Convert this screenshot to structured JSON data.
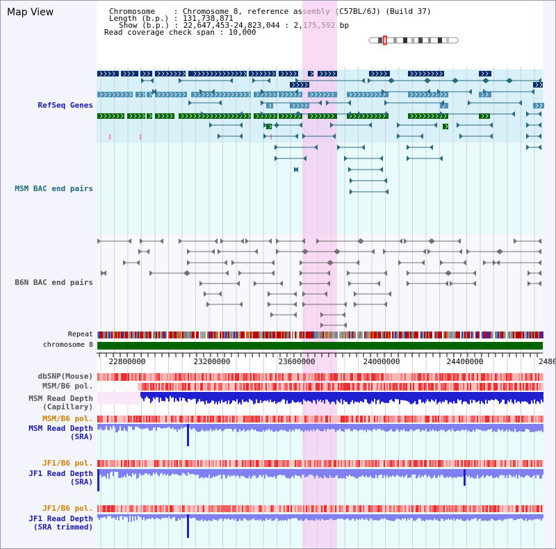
{
  "title": "Map View",
  "info": {
    "chromosome_line": "Chromosome    : Chromosome 8, reference assembly (C57BL/6J) (Build 37)",
    "length_line": "Length (b.p.) : 131,738,871",
    "show_line": "Show (b.p.) : 22,647,453-24,823,044 : 2,175,592 bp",
    "coverage_line": "Read coverage check span : 10,000"
  },
  "tracks": {
    "refseq": "RefSeq Genes",
    "msm_bac": "MSM BAC end pairs",
    "b6n_bac": "B6N BAC end pairs",
    "repeat": "Repeat",
    "chromosome": "chromosome 8",
    "dbsnp": "dbSNP(Mouse)",
    "msm_b6_pol_1": "MSM/B6 pol.",
    "msm_read_depth_cap": "MSM Read Depth\n(Capillary)",
    "msm_b6_pol_2": "MSM/B6 pol.",
    "msm_read_depth_sra": "MSM Read Depth\n(SRA)",
    "jf1_b6_pol_1": "JF1/B6 pol.",
    "jf1_read_depth_sra": "JF1 Read Depth\n(SRA)",
    "jf1_b6_pol_2": "JF1/B6 pol.",
    "jf1_read_depth_trim": "JF1 Read Depth\n(SRA trimmed)"
  },
  "axis": {
    "ticks": [
      "22800000",
      "23200000",
      "23600000",
      "24000000",
      "24400000",
      "2480"
    ]
  },
  "colors": {
    "refseq_bg": "#d8f0f8",
    "msm_bg": "#e8fafa",
    "highlight": "#f8c8f0",
    "chromosome": "#006400",
    "gene_navy": "#0a2a6a",
    "gene_steel": "#4a90b8",
    "gene_green": "#006400",
    "bac_teal": "#2a6a80",
    "b6n_grey": "#707070",
    "depth_blue": "#2020d0",
    "depth_light": "#8080f0"
  }
}
